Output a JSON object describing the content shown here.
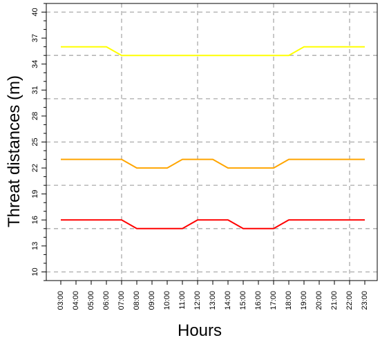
{
  "chart_data": {
    "type": "line",
    "title": "",
    "xlabel": "Hours",
    "ylabel": "Threat distances (m)",
    "ylim": [
      9,
      41
    ],
    "y_ticks": [
      10,
      13,
      16,
      19,
      22,
      25,
      28,
      31,
      34,
      37,
      40
    ],
    "y_minor_step": 1,
    "grid": true,
    "grid_y": [
      10,
      15,
      20,
      25,
      30,
      35,
      40
    ],
    "grid_x": [
      "07:00",
      "12:00",
      "17:00",
      "22:00"
    ],
    "legend": "none",
    "categories": [
      "03:00",
      "04:00",
      "05:00",
      "06:00",
      "07:00",
      "08:00",
      "09:00",
      "10:00",
      "11:00",
      "12:00",
      "13:00",
      "14:00",
      "15:00",
      "16:00",
      "17:00",
      "18:00",
      "19:00",
      "20:00",
      "21:00",
      "22:00",
      "23:00"
    ],
    "series": [
      {
        "color": "#ffff00",
        "values": [
          36,
          36,
          36,
          36,
          35,
          35,
          35,
          35,
          35,
          35,
          35,
          35,
          35,
          35,
          35,
          35,
          36,
          36,
          36,
          36,
          36
        ]
      },
      {
        "color": "#ffa500",
        "values": [
          23,
          23,
          23,
          23,
          23,
          22,
          22,
          22,
          23,
          23,
          23,
          22,
          22,
          22,
          22,
          23,
          23,
          23,
          23,
          23,
          23
        ]
      },
      {
        "color": "#ff0000",
        "values": [
          16,
          16,
          16,
          16,
          16,
          15,
          15,
          15,
          15,
          16,
          16,
          16,
          15,
          15,
          15,
          16,
          16,
          16,
          16,
          16,
          16
        ]
      }
    ]
  }
}
